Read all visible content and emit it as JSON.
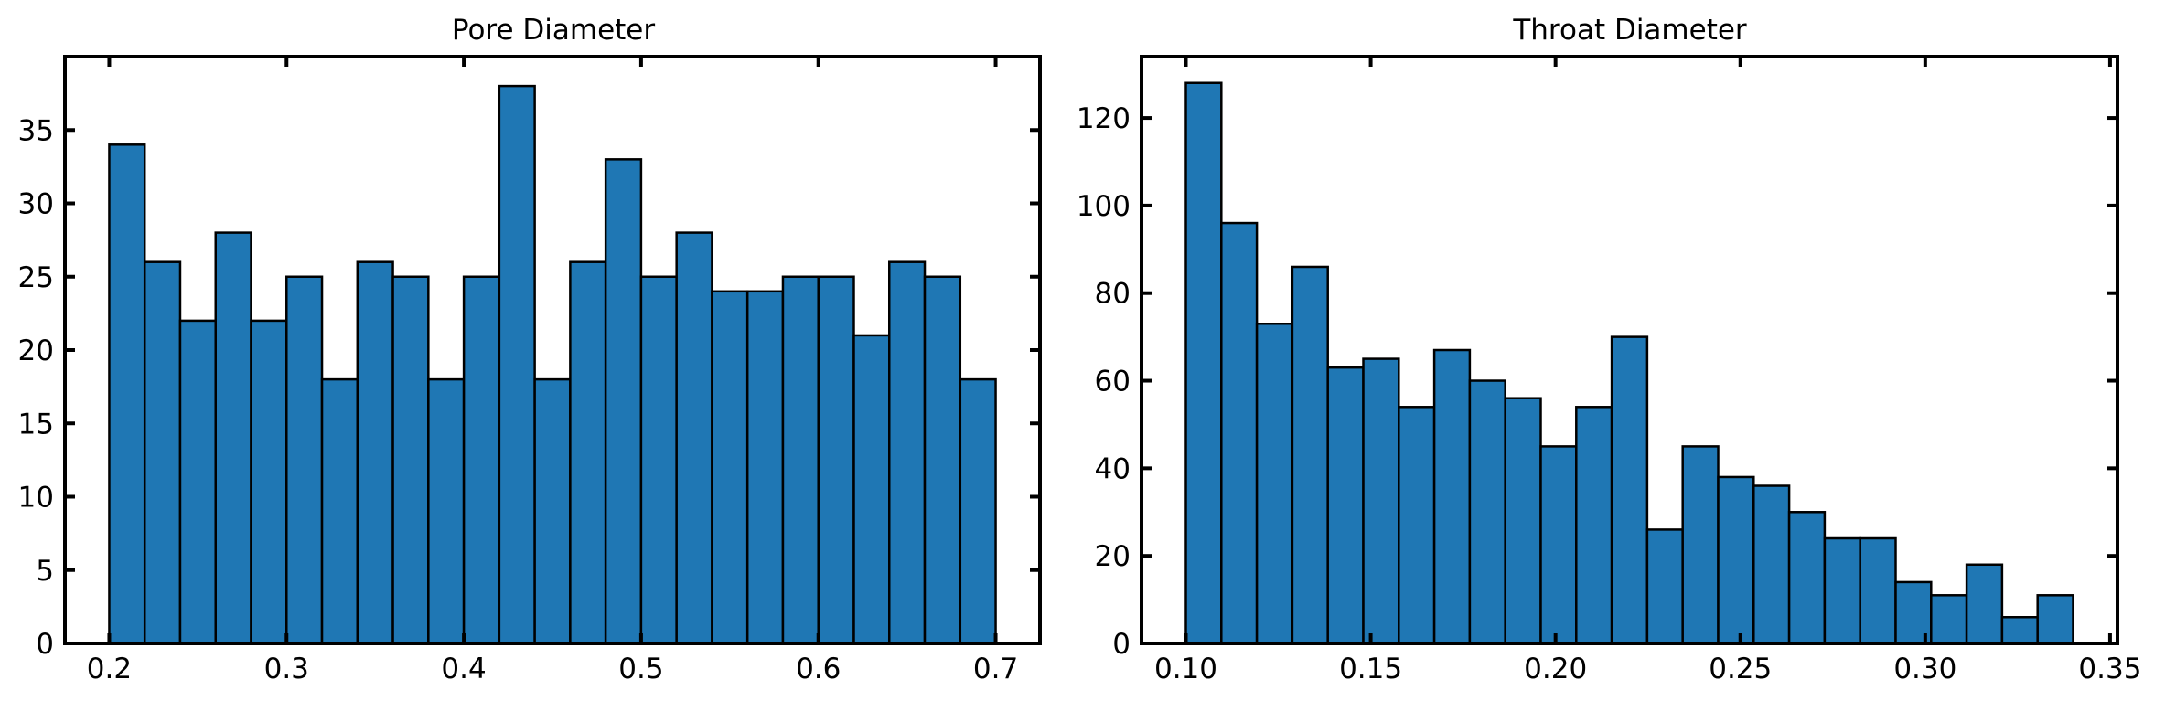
{
  "colors": {
    "bar_fill": "#1f77b4",
    "bar_edge": "#000000",
    "axes": "#000000"
  },
  "chart_data": [
    {
      "type": "bar",
      "title": "Pore Diameter",
      "xlabel": "",
      "ylabel": "",
      "bin_start": 0.2,
      "bin_width": 0.02,
      "values": [
        34,
        26,
        22,
        28,
        22,
        25,
        18,
        26,
        25,
        18,
        25,
        38,
        18,
        26,
        33,
        25,
        28,
        24,
        24,
        25,
        25,
        21,
        26,
        25,
        18
      ],
      "xlim": [
        0.175,
        0.725
      ],
      "ylim": [
        0,
        40
      ],
      "xticks": [
        0.2,
        0.3,
        0.4,
        0.5,
        0.6,
        0.7
      ],
      "xtick_labels": [
        "0.2",
        "0.3",
        "0.4",
        "0.5",
        "0.6",
        "0.7"
      ],
      "yticks": [
        0,
        5,
        10,
        15,
        20,
        25,
        30,
        35
      ],
      "ytick_labels": [
        "0",
        "5",
        "10",
        "15",
        "20",
        "25",
        "30",
        "35"
      ],
      "grid": false
    },
    {
      "type": "bar",
      "title": "Throat Diameter",
      "xlabel": "",
      "ylabel": "",
      "bin_start": 0.1,
      "bin_width": 0.0096,
      "values": [
        128,
        96,
        73,
        86,
        63,
        65,
        54,
        67,
        60,
        56,
        45,
        54,
        70,
        26,
        45,
        38,
        36,
        30,
        24,
        24,
        14,
        11,
        18,
        6,
        11
      ],
      "xlim": [
        0.088,
        0.352
      ],
      "ylim": [
        0,
        134
      ],
      "xticks": [
        0.1,
        0.15,
        0.2,
        0.25,
        0.3,
        0.35
      ],
      "xtick_labels": [
        "0.10",
        "0.15",
        "0.20",
        "0.25",
        "0.30",
        "0.35"
      ],
      "yticks": [
        0,
        20,
        40,
        60,
        80,
        100,
        120
      ],
      "ytick_labels": [
        "0",
        "20",
        "40",
        "60",
        "80",
        "100",
        "120"
      ],
      "grid": false
    }
  ]
}
